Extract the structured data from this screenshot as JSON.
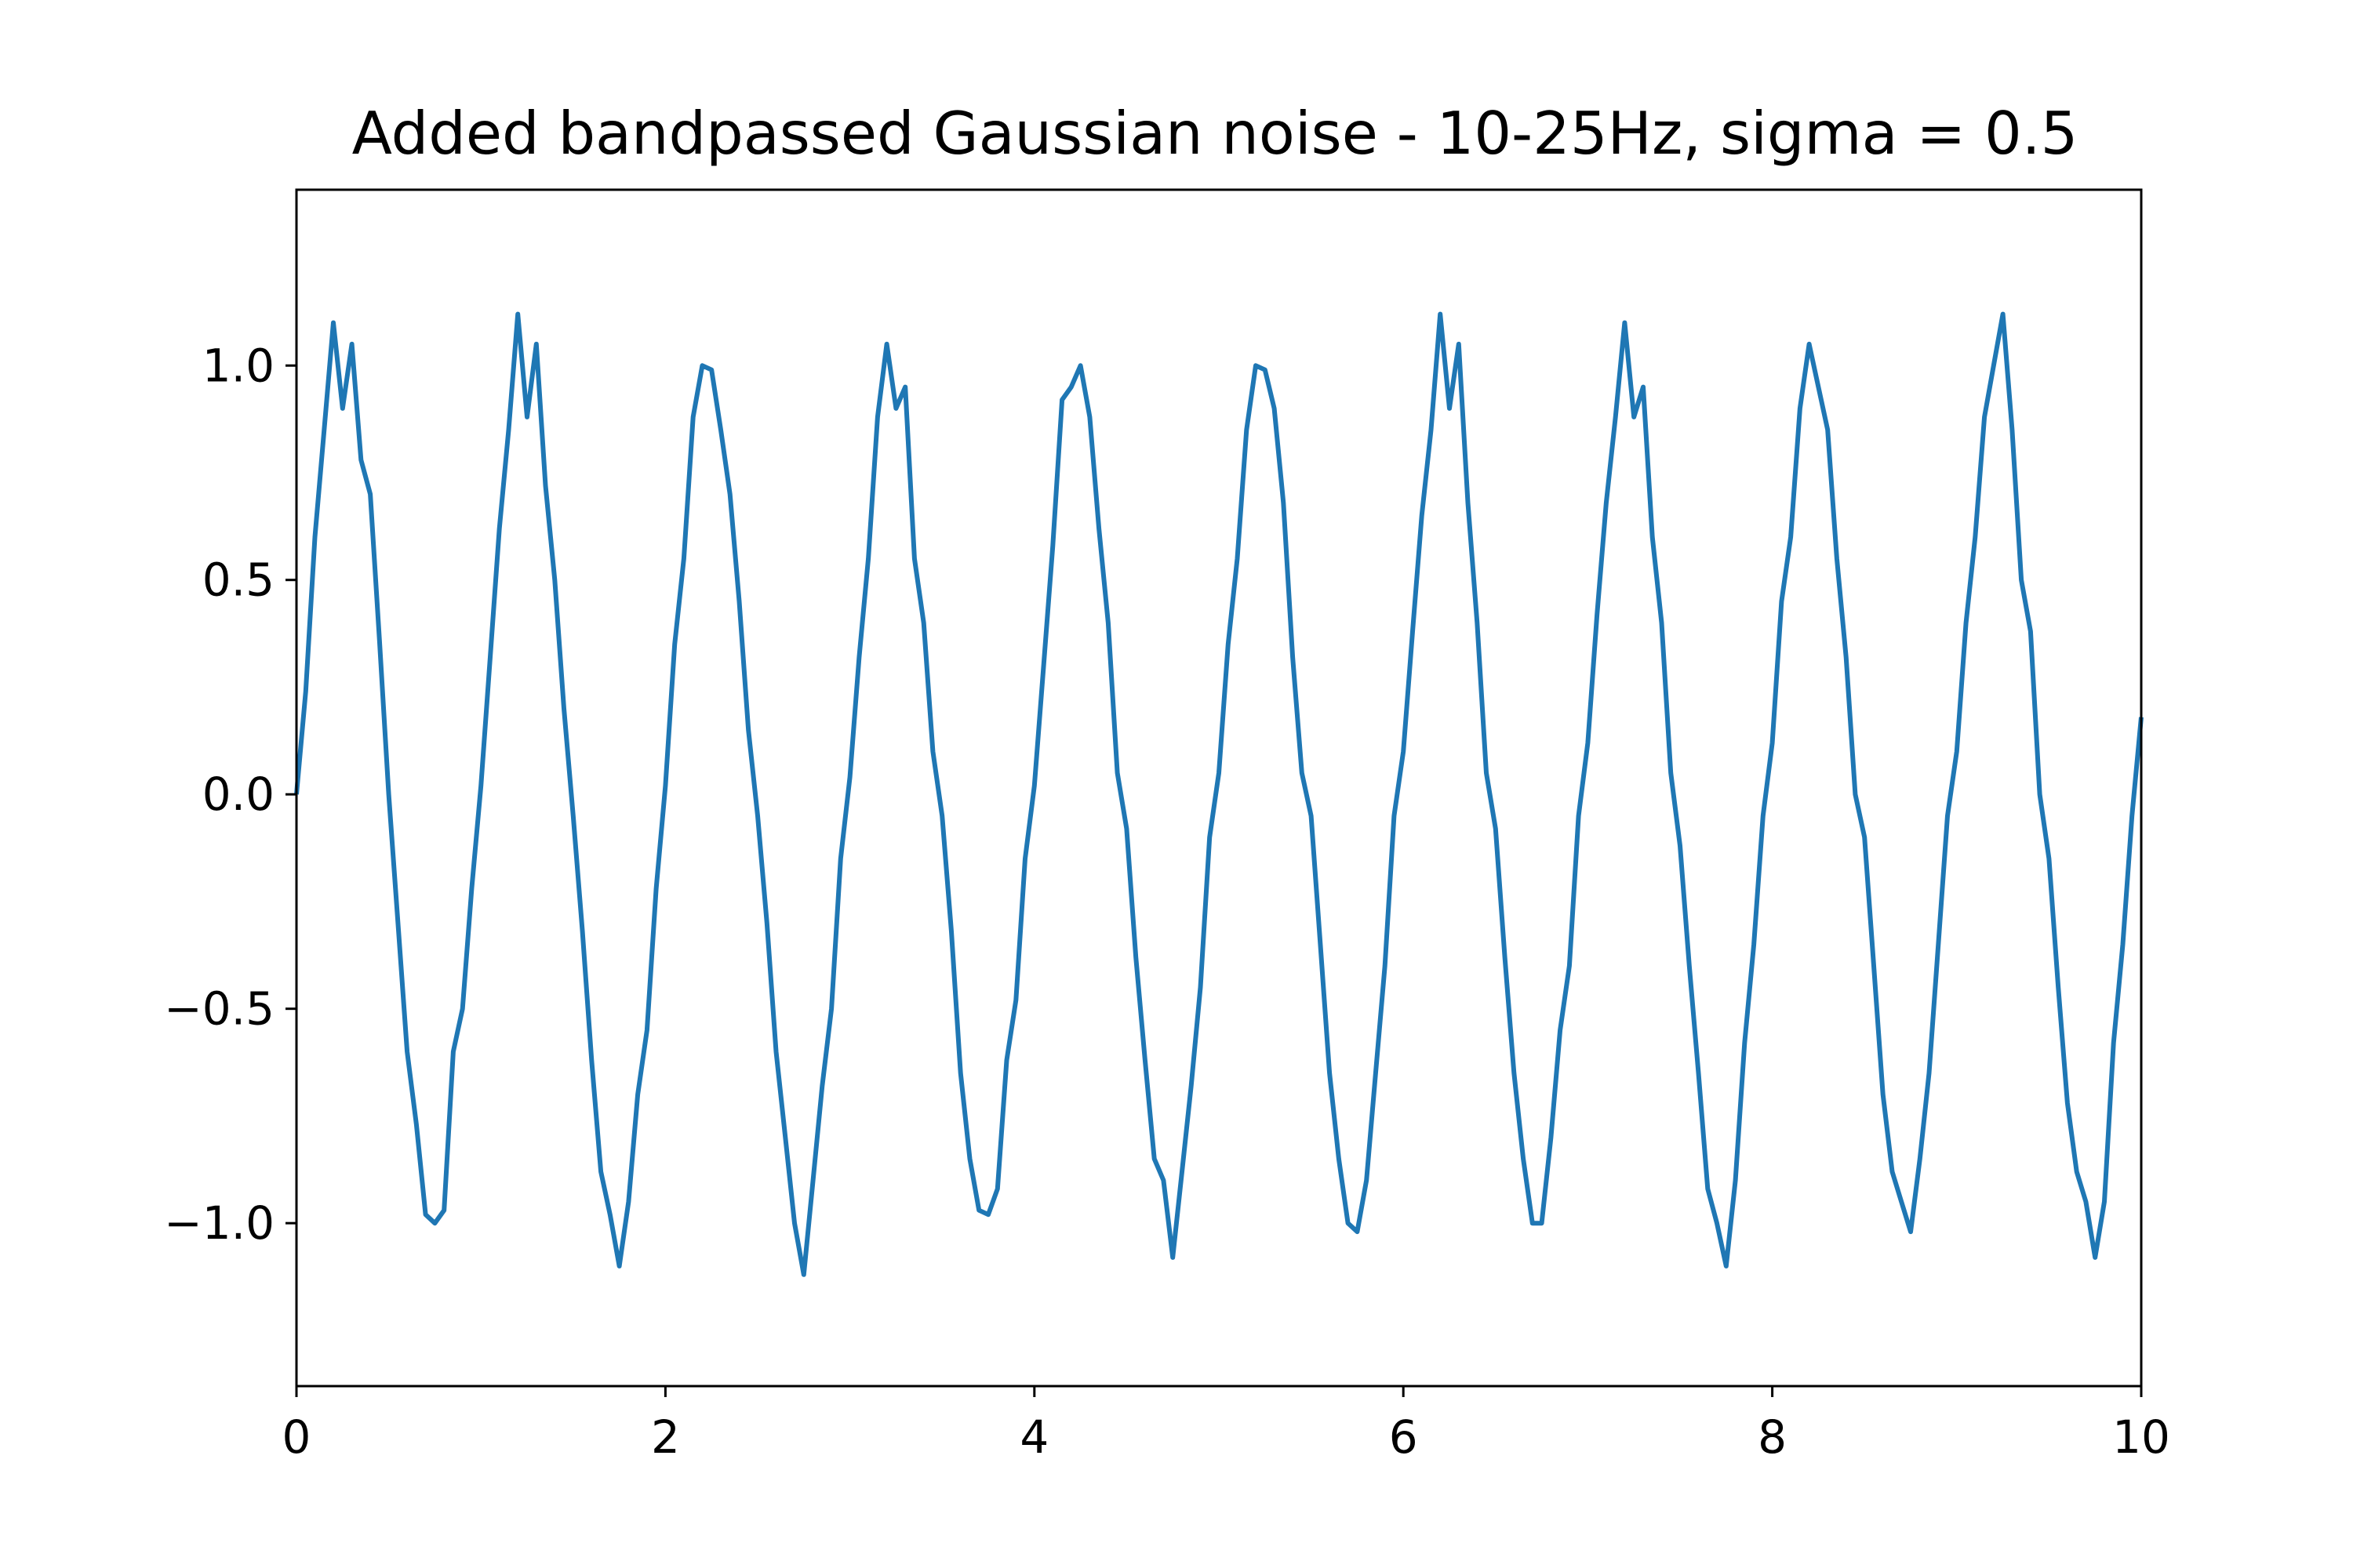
{
  "chart_data": {
    "type": "line",
    "title": "Added bandpassed Gaussian noise - 10-25Hz, sigma = 0.5",
    "xlabel": "",
    "ylabel": "",
    "xlim": [
      0,
      10
    ],
    "ylim": [
      -1.38,
      1.41
    ],
    "xticks": [
      0,
      2,
      4,
      6,
      8,
      10
    ],
    "xtick_labels": [
      "0",
      "2",
      "4",
      "6",
      "8",
      "10"
    ],
    "yticks": [
      -1.0,
      -0.5,
      0.0,
      0.5,
      1.0
    ],
    "ytick_labels": [
      "−1.0",
      "−0.5",
      "0.0",
      "0.5",
      "1.0"
    ],
    "grid": false,
    "line_color": "#1f77b4",
    "series": [
      {
        "x": [
          0.0,
          0.05,
          0.1,
          0.15,
          0.2,
          0.25,
          0.3,
          0.35,
          0.4,
          0.45,
          0.5,
          0.55,
          0.6,
          0.65,
          0.7,
          0.75,
          0.8,
          0.85,
          0.9,
          0.95,
          1.0,
          1.05,
          1.1,
          1.15,
          1.2,
          1.25,
          1.3,
          1.35,
          1.4,
          1.45,
          1.5,
          1.55,
          1.6,
          1.65,
          1.7,
          1.75,
          1.8,
          1.85,
          1.9,
          1.95,
          2.0,
          2.05,
          2.1,
          2.15,
          2.2,
          2.25,
          2.3,
          2.35,
          2.4,
          2.45,
          2.5,
          2.55,
          2.6,
          2.65,
          2.7,
          2.75,
          2.8,
          2.85,
          2.9,
          2.95,
          3.0,
          3.05,
          3.1,
          3.15,
          3.2,
          3.25,
          3.3,
          3.35,
          3.4,
          3.45,
          3.5,
          3.55,
          3.6,
          3.65,
          3.7,
          3.75,
          3.8,
          3.85,
          3.9,
          3.95,
          4.0,
          4.05,
          4.1,
          4.15,
          4.2,
          4.25,
          4.3,
          4.35,
          4.4,
          4.45,
          4.5,
          4.55,
          4.6,
          4.65,
          4.7,
          4.75,
          4.8,
          4.85,
          4.9,
          4.95,
          5.0,
          5.05,
          5.1,
          5.15,
          5.2,
          5.25,
          5.3,
          5.35,
          5.4,
          5.45,
          5.5,
          5.55,
          5.6,
          5.65,
          5.7,
          5.75,
          5.8,
          5.85,
          5.9,
          5.95,
          6.0,
          6.05,
          6.1,
          6.15,
          6.2,
          6.25,
          6.3,
          6.35,
          6.4,
          6.45,
          6.5,
          6.55,
          6.6,
          6.65,
          6.7,
          6.75,
          6.8,
          6.85,
          6.9,
          6.95,
          7.0,
          7.05,
          7.1,
          7.15,
          7.2,
          7.25,
          7.3,
          7.35,
          7.4,
          7.45,
          7.5,
          7.55,
          7.6,
          7.65,
          7.7,
          7.75,
          7.8,
          7.85,
          7.9,
          7.95,
          8.0,
          8.05,
          8.1,
          8.15,
          8.2,
          8.25,
          8.3,
          8.35,
          8.4,
          8.45,
          8.5,
          8.55,
          8.6,
          8.65,
          8.7,
          8.75,
          8.8,
          8.85,
          8.9,
          8.95,
          9.0,
          9.05,
          9.1,
          9.15,
          9.2,
          9.25,
          9.3,
          9.35,
          9.4,
          9.45,
          9.5,
          9.55,
          9.6,
          9.65,
          9.7,
          9.75,
          9.8,
          9.85,
          9.9,
          9.95,
          10.0
        ],
        "y": [
          0.0,
          0.24,
          0.6,
          0.85,
          1.1,
          0.9,
          1.05,
          0.78,
          0.7,
          0.36,
          0.0,
          -0.3,
          -0.6,
          -0.77,
          -0.98,
          -1.0,
          -0.97,
          -0.6,
          -0.5,
          -0.22,
          0.02,
          0.32,
          0.62,
          0.85,
          1.12,
          0.88,
          1.05,
          0.72,
          0.5,
          0.2,
          -0.05,
          -0.32,
          -0.62,
          -0.88,
          -0.98,
          -1.1,
          -0.95,
          -0.7,
          -0.55,
          -0.22,
          0.02,
          0.35,
          0.55,
          0.88,
          1.0,
          0.99,
          0.85,
          0.7,
          0.45,
          0.15,
          -0.05,
          -0.3,
          -0.6,
          -0.8,
          -1.0,
          -1.12,
          -0.9,
          -0.68,
          -0.5,
          -0.15,
          0.04,
          0.32,
          0.55,
          0.88,
          1.05,
          0.9,
          0.95,
          0.55,
          0.4,
          0.1,
          -0.05,
          -0.32,
          -0.65,
          -0.85,
          -0.97,
          -0.98,
          -0.92,
          -0.62,
          -0.48,
          -0.15,
          0.02,
          0.3,
          0.58,
          0.92,
          0.95,
          1.0,
          0.88,
          0.62,
          0.4,
          0.05,
          -0.08,
          -0.38,
          -0.62,
          -0.85,
          -0.9,
          -1.08,
          -0.88,
          -0.68,
          -0.45,
          -0.1,
          0.05,
          0.35,
          0.55,
          0.85,
          1.0,
          0.99,
          0.9,
          0.68,
          0.32,
          0.05,
          -0.05,
          -0.35,
          -0.65,
          -0.85,
          -1.0,
          -1.02,
          -0.9,
          -0.65,
          -0.4,
          -0.05,
          0.1,
          0.38,
          0.65,
          0.85,
          1.12,
          0.9,
          1.05,
          0.68,
          0.4,
          0.05,
          -0.08,
          -0.38,
          -0.65,
          -0.85,
          -1.0,
          -1.0,
          -0.8,
          -0.55,
          -0.4,
          -0.05,
          0.12,
          0.42,
          0.68,
          0.88,
          1.1,
          0.88,
          0.95,
          0.6,
          0.4,
          0.05,
          -0.12,
          -0.4,
          -0.65,
          -0.92,
          -1.0,
          -1.1,
          -0.9,
          -0.58,
          -0.35,
          -0.05,
          0.12,
          0.45,
          0.6,
          0.9,
          1.05,
          0.95,
          0.85,
          0.55,
          0.32,
          0.0,
          -0.1,
          -0.4,
          -0.7,
          -0.88,
          -0.95,
          -1.02,
          -0.85,
          -0.65,
          -0.35,
          -0.05,
          0.1,
          0.4,
          0.6,
          0.88,
          1.0,
          1.12,
          0.85,
          0.5,
          0.38,
          0.0,
          -0.15,
          -0.45,
          -0.72,
          -0.88,
          -0.95,
          -1.08,
          -0.95,
          -0.58,
          -0.35,
          -0.05,
          0.18
        ]
      }
    ]
  }
}
